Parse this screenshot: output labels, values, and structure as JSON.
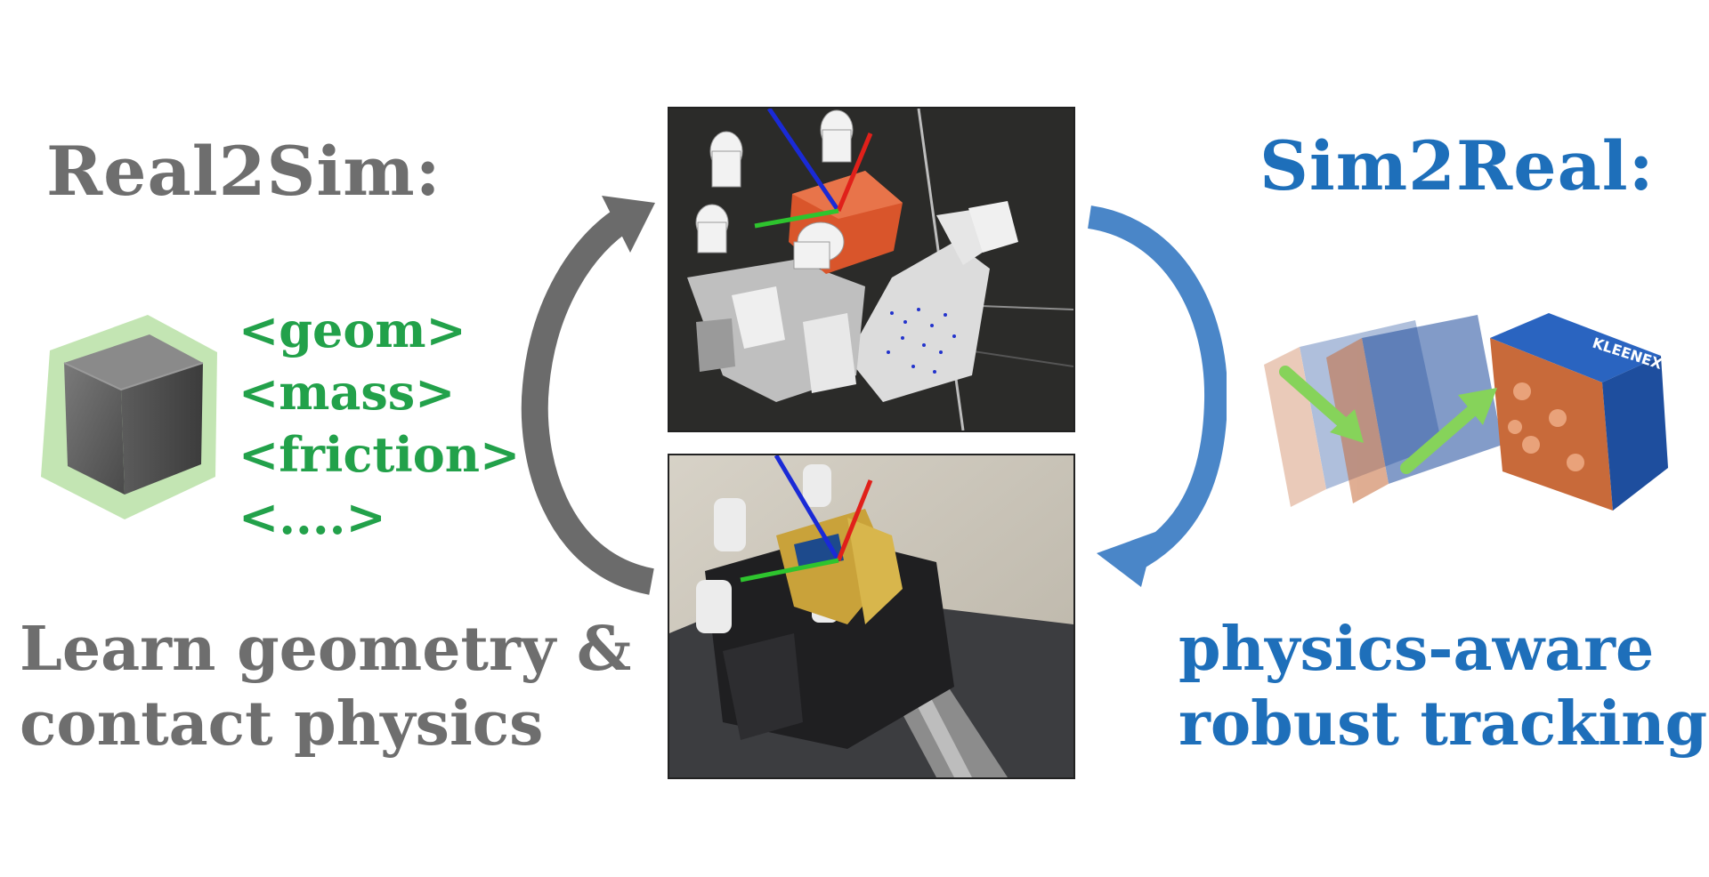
{
  "left": {
    "title": "Real2Sim:",
    "tags": [
      "<geom>",
      "<mass>",
      "<friction>",
      "<....>"
    ],
    "caption_lines": [
      "Learn geometry &",
      "contact physics"
    ]
  },
  "right": {
    "title": "Sim2Real:",
    "caption_lines": [
      "physics-aware",
      "robust tracking"
    ],
    "object_label": "KLEENEX"
  },
  "colors": {
    "real2sim": "#6e6e6e",
    "sim2real": "#1e6fba",
    "tags": "#22a14a",
    "motion_arrows": "#86d35a",
    "cycle_arrow_left": "#6b6b6b",
    "cycle_arrow_right": "#4a86c8"
  },
  "icons": {
    "cube": "mesh-cube-icon",
    "sim_view": "simulated-robot-hand-image",
    "real_view": "real-robot-hand-image",
    "tracking": "tracked-tissue-box-image"
  }
}
